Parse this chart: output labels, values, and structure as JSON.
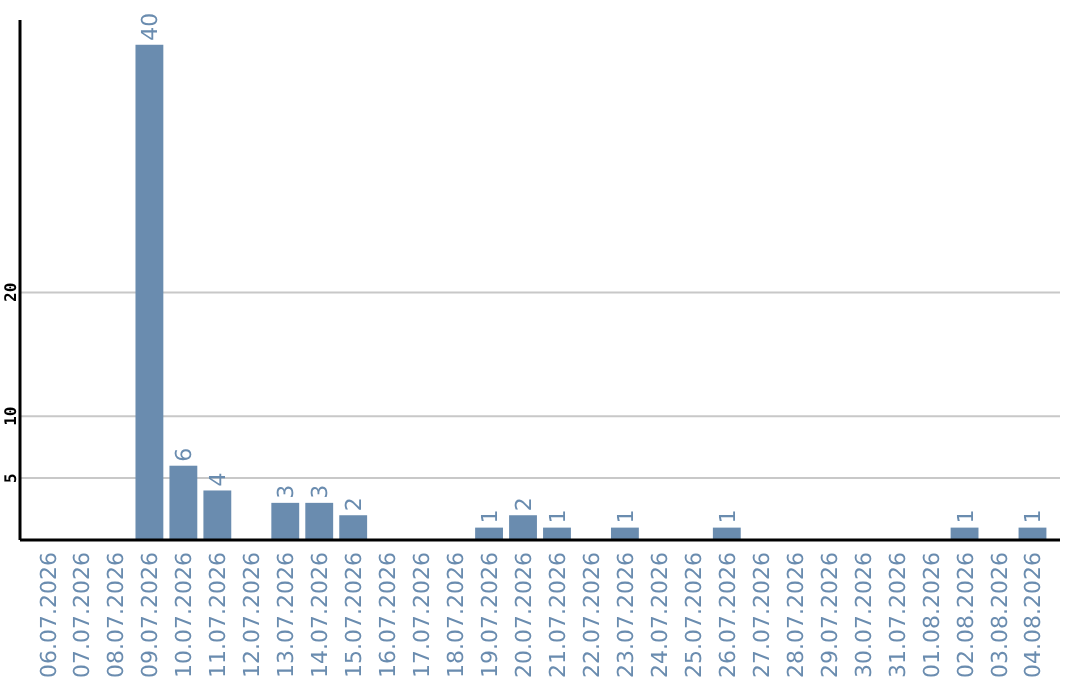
{
  "chart_data": {
    "type": "bar",
    "categories": [
      "06.07.2026",
      "07.07.2026",
      "08.07.2026",
      "09.07.2026",
      "10.07.2026",
      "11.07.2026",
      "12.07.2026",
      "13.07.2026",
      "14.07.2026",
      "15.07.2026",
      "16.07.2026",
      "17.07.2026",
      "18.07.2026",
      "19.07.2026",
      "20.07.2026",
      "21.07.2026",
      "22.07.2026",
      "23.07.2026",
      "24.07.2026",
      "25.07.2026",
      "26.07.2026",
      "27.07.2026",
      "28.07.2026",
      "29.07.2026",
      "30.07.2026",
      "31.07.2026",
      "01.08.2026",
      "02.08.2026",
      "03.08.2026",
      "04.08.2026"
    ],
    "values": [
      0,
      0,
      0,
      40,
      6,
      4,
      0,
      3,
      3,
      2,
      0,
      0,
      0,
      1,
      2,
      1,
      0,
      1,
      0,
      0,
      1,
      0,
      0,
      0,
      0,
      0,
      0,
      1,
      0,
      1
    ],
    "value_labels": [
      null,
      null,
      null,
      "40",
      "6",
      "4",
      null,
      "3",
      "3",
      "2",
      null,
      null,
      null,
      "1",
      "2",
      "1",
      null,
      "1",
      null,
      null,
      "1",
      null,
      null,
      null,
      null,
      null,
      null,
      "1",
      null,
      "1"
    ],
    "color": "#6a8caf",
    "ylim": [
      0,
      42
    ],
    "yticks": [
      5,
      10,
      20
    ],
    "grid": "y"
  }
}
